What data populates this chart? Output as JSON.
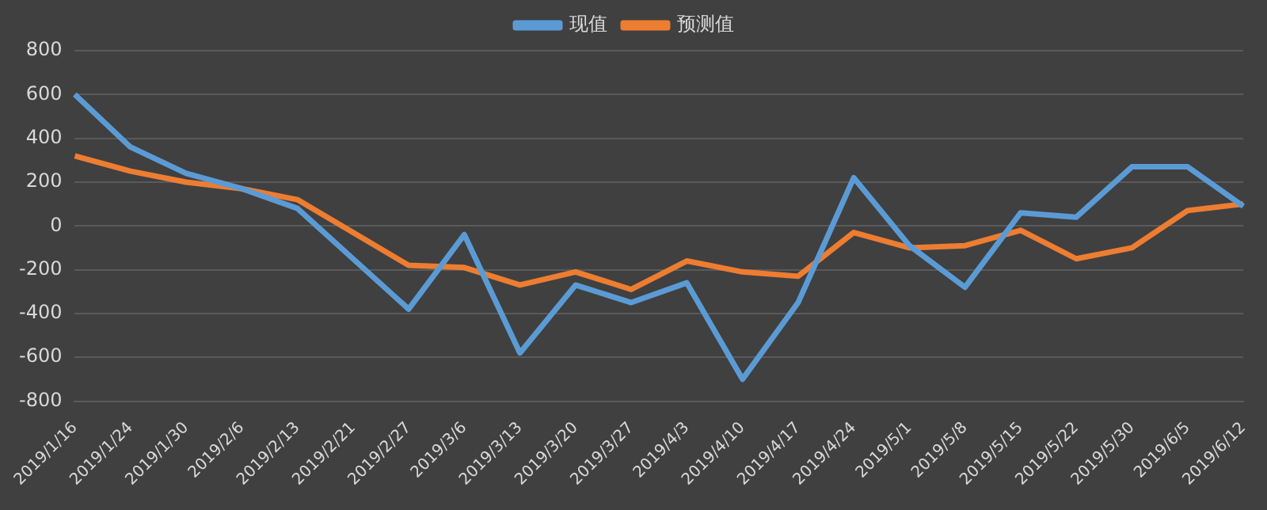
{
  "chart_data": {
    "type": "line",
    "categories": [
      "2019/1/16",
      "2019/1/24",
      "2019/1/30",
      "2019/2/6",
      "2019/2/13",
      "2019/2/21",
      "2019/2/27",
      "2019/3/6",
      "2019/3/13",
      "2019/3/20",
      "2019/3/27",
      "2019/4/3",
      "2019/4/10",
      "2019/4/17",
      "2019/4/24",
      "2019/5/1",
      "2019/5/8",
      "2019/5/15",
      "2019/5/22",
      "2019/5/30",
      "2019/6/5",
      "2019/6/12"
    ],
    "series": [
      {
        "name": "现值",
        "color": "#5b9bd5",
        "values": [
          600,
          360,
          240,
          170,
          80,
          -150,
          -380,
          -40,
          -580,
          -270,
          -350,
          -260,
          -700,
          -350,
          220,
          -90,
          -280,
          60,
          40,
          270,
          270,
          90
        ]
      },
      {
        "name": "预测值",
        "color": "#ed7d31",
        "values": [
          320,
          250,
          200,
          170,
          120,
          -30,
          -180,
          -190,
          -270,
          -210,
          -290,
          -160,
          -210,
          -230,
          -30,
          -100,
          -90,
          -20,
          -150,
          -100,
          70,
          100
        ]
      }
    ],
    "ylim": [
      -800,
      800
    ],
    "yticks": [
      -800,
      -600,
      -400,
      -200,
      0,
      200,
      400,
      600,
      800
    ],
    "grid": "y",
    "legend": "top",
    "marker": "none",
    "line_style": "solid"
  }
}
